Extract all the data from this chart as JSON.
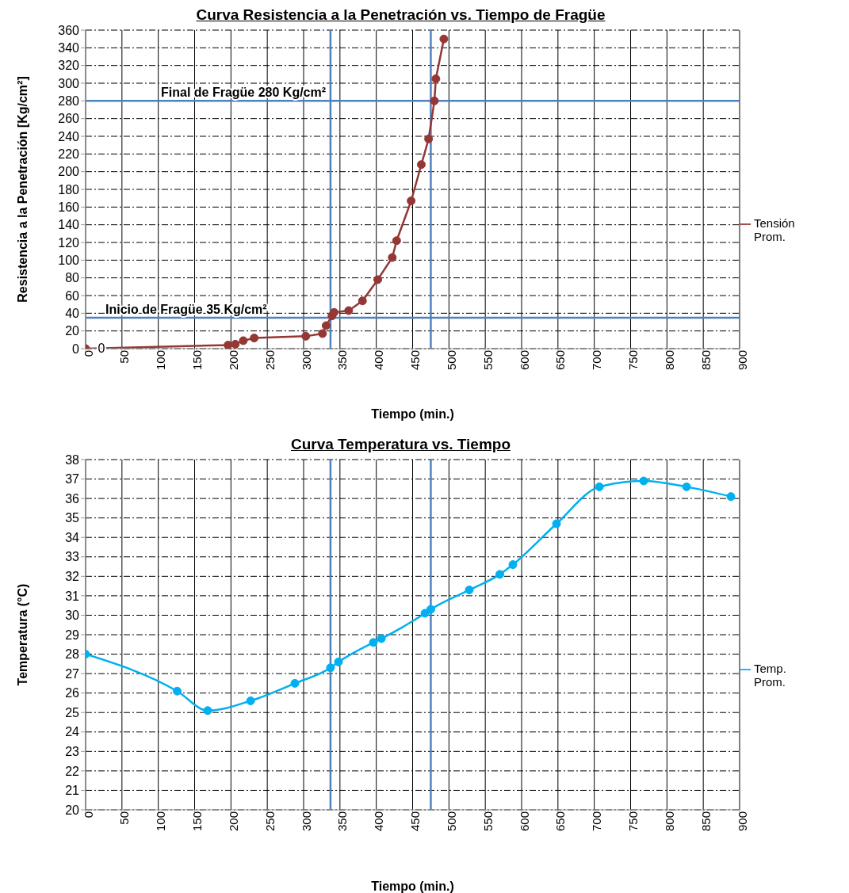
{
  "chart_data": [
    {
      "type": "line",
      "title": "Curva Resistencia a la Penetración vs. Tiempo de Fragüe",
      "xlabel": "Tiempo (min.)",
      "ylabel": "Resistencia a la Penetración [Kg/cm²]",
      "series": [
        {
          "name": "Tensión Prom.",
          "color": "#953735",
          "x": [
            0,
            196,
            206,
            217,
            232,
            303,
            326,
            331,
            339,
            342,
            362,
            381,
            402,
            422,
            428,
            448,
            462,
            472,
            480,
            482,
            493
          ],
          "values": [
            0,
            4,
            5,
            9,
            12,
            14,
            17,
            26,
            37,
            41,
            43,
            54,
            78,
            103,
            122,
            167,
            208,
            237,
            280,
            305,
            350
          ]
        }
      ],
      "xlim": [
        0,
        900
      ],
      "xticks": [
        0,
        50,
        100,
        150,
        200,
        250,
        300,
        350,
        400,
        450,
        500,
        550,
        600,
        650,
        700,
        750,
        800,
        850,
        900
      ],
      "ylim": [
        0,
        360
      ],
      "yticks": [
        0,
        20,
        40,
        60,
        80,
        100,
        120,
        140,
        160,
        180,
        200,
        220,
        240,
        260,
        280,
        300,
        320,
        340,
        360
      ],
      "ref_lines": [
        {
          "axis": "y",
          "value": 35,
          "label": "Inicio de Fragüe 35 Kg/cm²",
          "color": "#4f81bd"
        },
        {
          "axis": "y",
          "value": 280,
          "label": "Final de Fragüe 280 Kg/cm²",
          "color": "#4f81bd"
        },
        {
          "axis": "x",
          "value": 337,
          "color": "#4f81bd"
        },
        {
          "axis": "x",
          "value": 475,
          "color": "#4f81bd"
        }
      ],
      "annotations": [
        {
          "text": "0",
          "x": 0,
          "y": 0
        }
      ],
      "grid": true,
      "legend": "right",
      "marker": "circle",
      "line_style": "solid"
    },
    {
      "type": "line",
      "title": "Curva Temperatura vs. Tiempo",
      "xlabel": "Tiempo (min.)",
      "ylabel": "Temperatura (°C)",
      "series": [
        {
          "name": "Temp. Prom.",
          "color": "#00b0f0",
          "x": [
            0,
            126,
            168,
            227,
            288,
            337,
            348,
            396,
            407,
            467,
            475,
            528,
            570,
            588,
            648,
            707,
            768,
            827,
            888
          ],
          "values": [
            28.0,
            26.1,
            25.1,
            25.6,
            26.5,
            27.3,
            27.6,
            28.6,
            28.8,
            30.1,
            30.3,
            31.3,
            32.1,
            32.6,
            34.7,
            36.6,
            36.9,
            36.6,
            36.1
          ]
        }
      ],
      "xlim": [
        0,
        900
      ],
      "xticks": [
        0,
        50,
        100,
        150,
        200,
        250,
        300,
        350,
        400,
        450,
        500,
        550,
        600,
        650,
        700,
        750,
        800,
        850,
        900
      ],
      "ylim": [
        20,
        38
      ],
      "yticks": [
        20,
        21,
        22,
        23,
        24,
        25,
        26,
        27,
        28,
        29,
        30,
        31,
        32,
        33,
        34,
        35,
        36,
        37,
        38
      ],
      "ref_lines": [
        {
          "axis": "x",
          "value": 337,
          "color": "#4f81bd"
        },
        {
          "axis": "x",
          "value": 475,
          "color": "#4f81bd"
        }
      ],
      "grid": true,
      "legend": "right",
      "marker": "circle",
      "line_style": "solid"
    }
  ]
}
